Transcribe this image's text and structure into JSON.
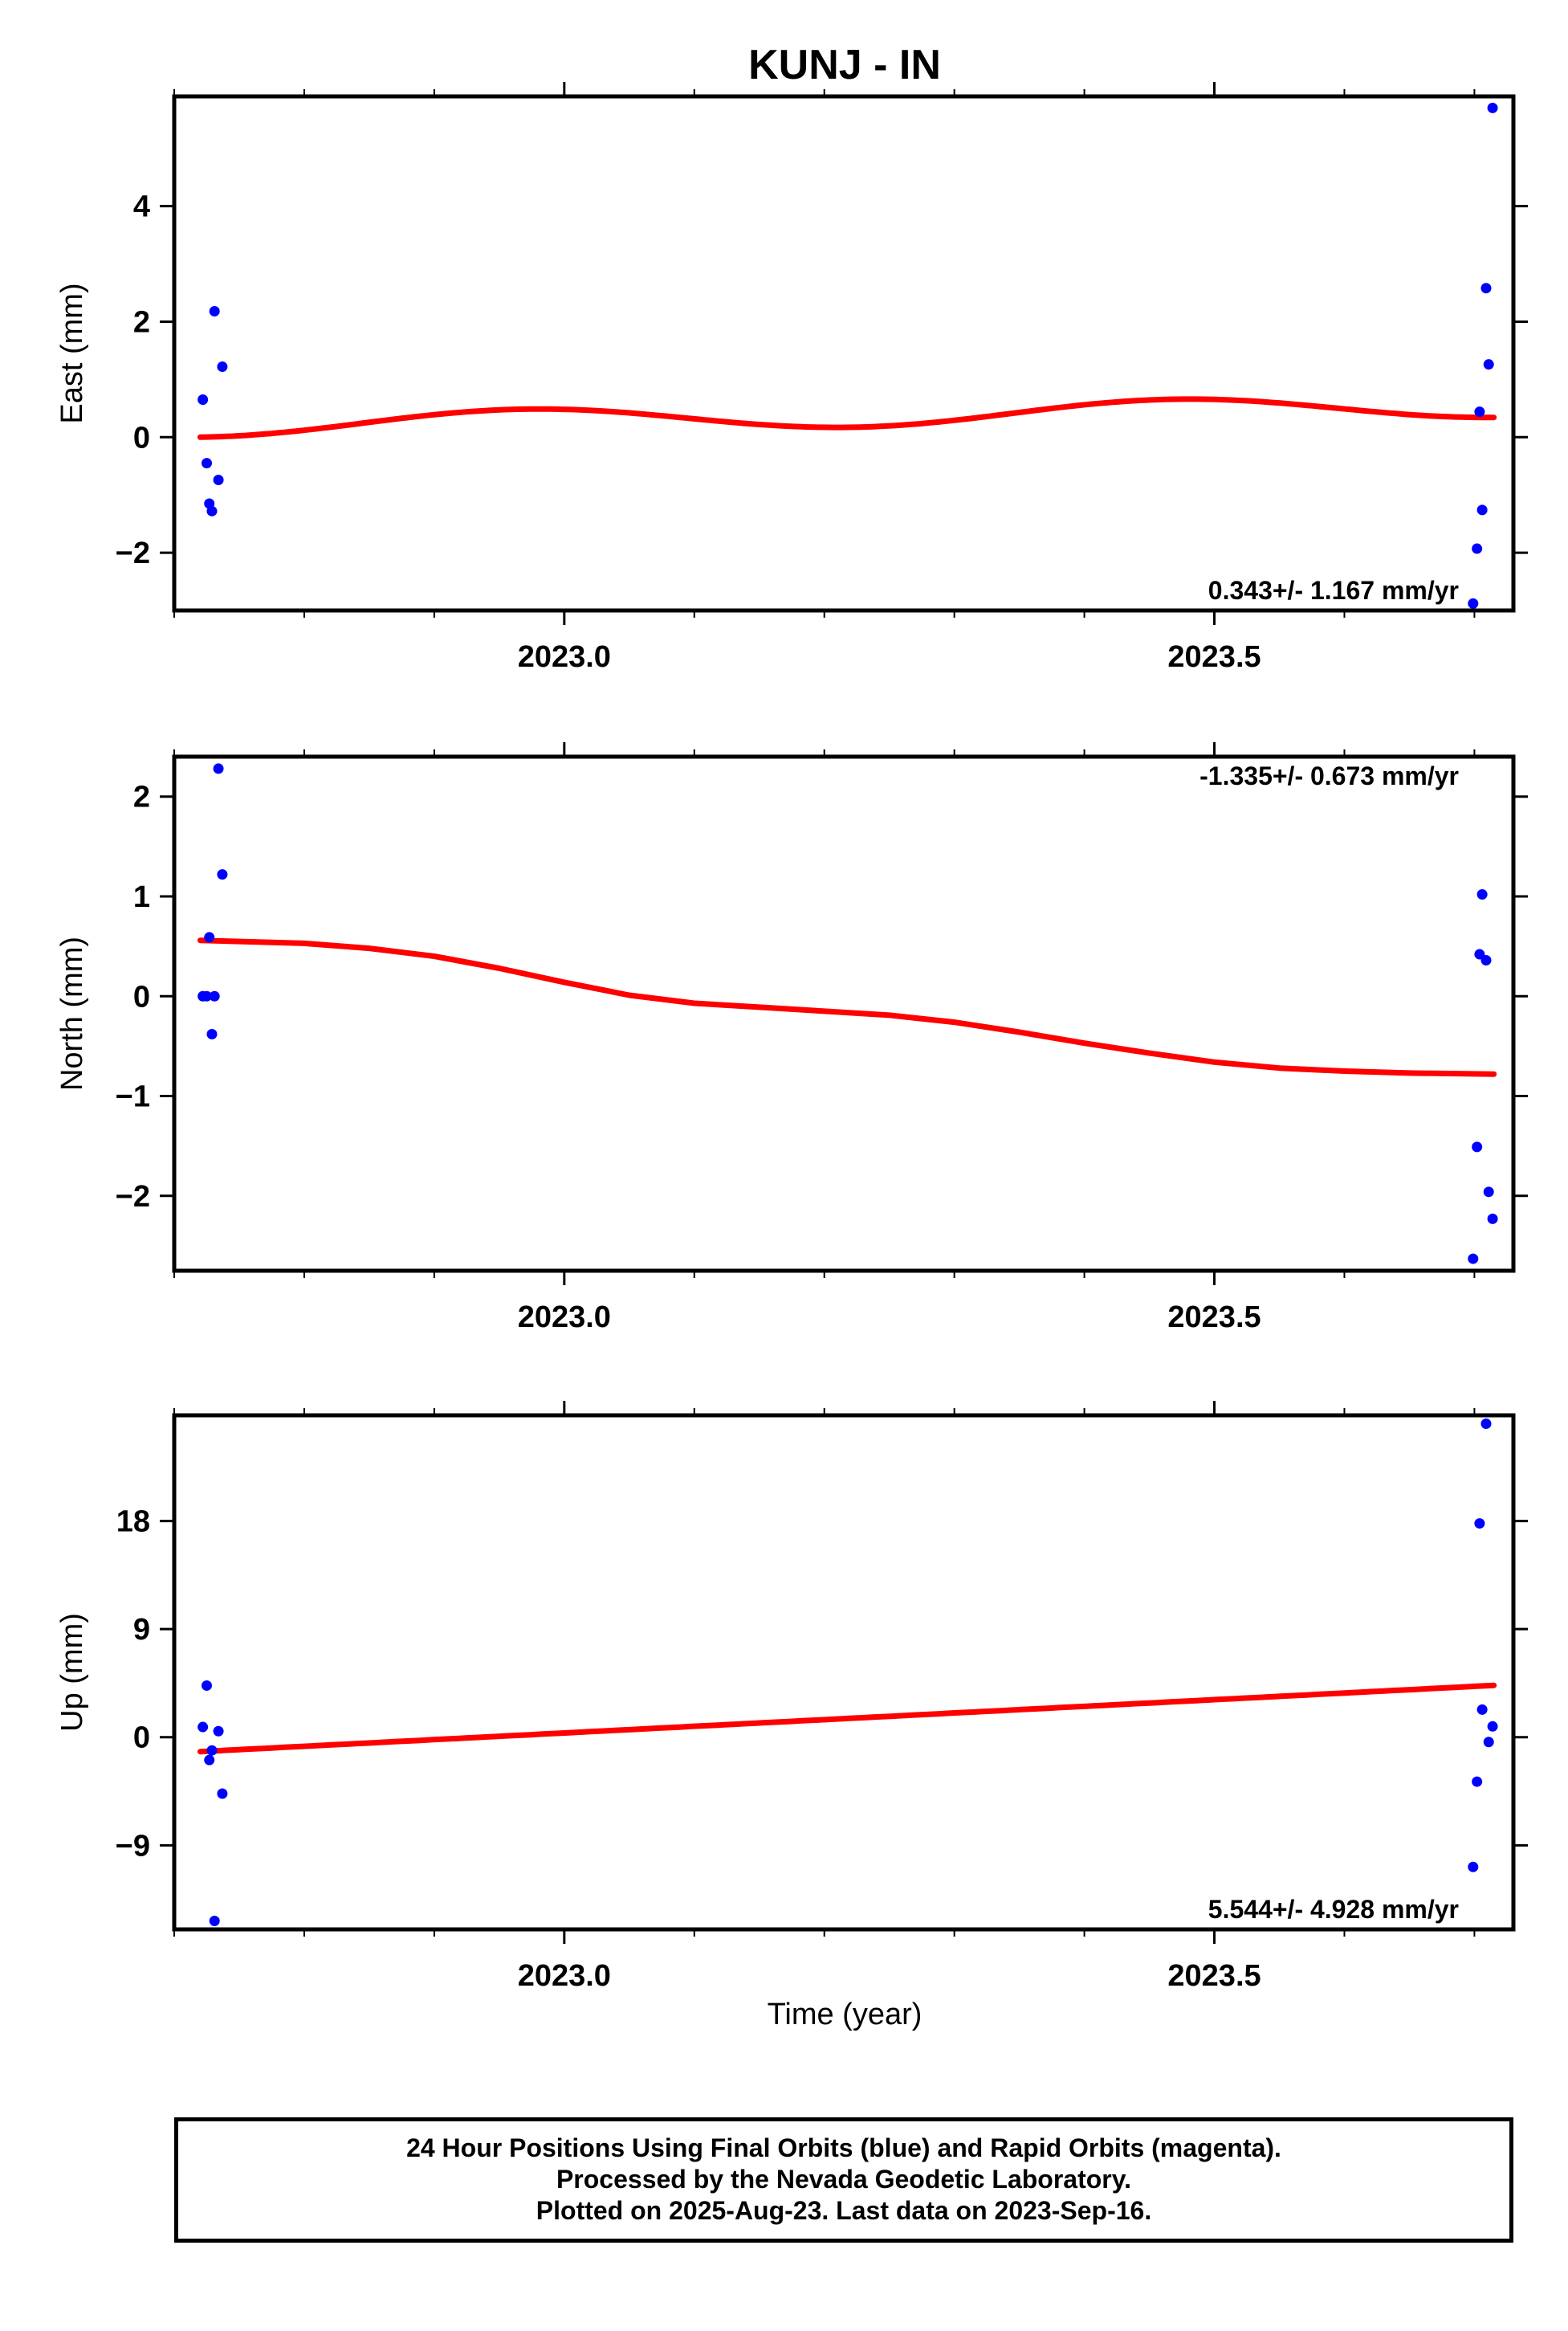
{
  "title": "KUNJ - IN",
  "xlabel": "Time (year)",
  "colors": {
    "data": "#0000ff",
    "fit": "#ff0000",
    "frame": "#000000"
  },
  "chart_data": [
    {
      "type": "scatter",
      "name": "east",
      "ylabel": "East (mm)",
      "xlim": [
        2022.7,
        2023.73
      ],
      "ylim": [
        -3.0,
        5.9
      ],
      "xticks": [
        2023.0,
        2023.5
      ],
      "xtick_labels": [
        "2023.0",
        "2023.5"
      ],
      "yticks": [
        -2,
        0,
        2,
        4
      ],
      "ytick_labels": [
        "−2",
        "0",
        "2",
        "4"
      ],
      "rate_label": "0.343+/- 1.167 mm/yr",
      "rate_position": "bottom-right",
      "points": [
        {
          "x": 2022.722,
          "y": 0.65
        },
        {
          "x": 2022.725,
          "y": -0.45
        },
        {
          "x": 2022.727,
          "y": -1.15
        },
        {
          "x": 2022.729,
          "y": -1.28
        },
        {
          "x": 2022.731,
          "y": 2.18
        },
        {
          "x": 2022.734,
          "y": -0.74
        },
        {
          "x": 2022.737,
          "y": 1.22
        },
        {
          "x": 2023.699,
          "y": -2.88
        },
        {
          "x": 2023.702,
          "y": -1.93
        },
        {
          "x": 2023.704,
          "y": 0.44
        },
        {
          "x": 2023.706,
          "y": -1.26
        },
        {
          "x": 2023.709,
          "y": 2.58
        },
        {
          "x": 2023.711,
          "y": 1.26
        },
        {
          "x": 2023.714,
          "y": 5.7
        }
      ],
      "fit": {
        "model": "linear+annual+semiannual",
        "x0": 2022.72,
        "x1": 2023.715,
        "offset": 0.0,
        "rate": 0.343,
        "terms": [
          {
            "amp": -0.2,
            "period": 0.5,
            "phase": 0.0,
            "shift": 0.2
          }
        ]
      }
    },
    {
      "type": "scatter",
      "name": "north",
      "ylabel": "North (mm)",
      "xlim": [
        2022.7,
        2023.73
      ],
      "ylim": [
        -2.75,
        2.4
      ],
      "xticks": [
        2023.0,
        2023.5
      ],
      "xtick_labels": [
        "2023.0",
        "2023.5"
      ],
      "yticks": [
        -2,
        -1,
        0,
        1,
        2
      ],
      "ytick_labels": [
        "−2",
        "−1",
        "0",
        "1",
        "2"
      ],
      "rate_label": "-1.335+/- 0.673 mm/yr",
      "rate_position": "top-right",
      "points": [
        {
          "x": 2022.722,
          "y": 0.0
        },
        {
          "x": 2022.725,
          "y": 0.0
        },
        {
          "x": 2022.727,
          "y": 0.59
        },
        {
          "x": 2022.729,
          "y": -0.38
        },
        {
          "x": 2022.731,
          "y": 0.0
        },
        {
          "x": 2022.734,
          "y": 2.28
        },
        {
          "x": 2022.737,
          "y": 1.22
        },
        {
          "x": 2023.699,
          "y": -2.63
        },
        {
          "x": 2023.702,
          "y": -1.51
        },
        {
          "x": 2023.704,
          "y": 0.42
        },
        {
          "x": 2023.706,
          "y": 1.02
        },
        {
          "x": 2023.709,
          "y": 0.36
        },
        {
          "x": 2023.711,
          "y": -1.96
        },
        {
          "x": 2023.714,
          "y": -2.23
        }
      ],
      "fit_curve": [
        [
          2022.72,
          0.56
        ],
        [
          2022.8,
          0.53
        ],
        [
          2022.85,
          0.48
        ],
        [
          2022.9,
          0.4
        ],
        [
          2022.95,
          0.28
        ],
        [
          2023.0,
          0.14
        ],
        [
          2023.05,
          0.01
        ],
        [
          2023.1,
          -0.07
        ],
        [
          2023.15,
          -0.11
        ],
        [
          2023.2,
          -0.15
        ],
        [
          2023.25,
          -0.19
        ],
        [
          2023.3,
          -0.26
        ],
        [
          2023.35,
          -0.36
        ],
        [
          2023.4,
          -0.47
        ],
        [
          2023.45,
          -0.57
        ],
        [
          2023.5,
          -0.66
        ],
        [
          2023.55,
          -0.72
        ],
        [
          2023.6,
          -0.75
        ],
        [
          2023.65,
          -0.77
        ],
        [
          2023.715,
          -0.78
        ]
      ]
    },
    {
      "type": "scatter",
      "name": "up",
      "ylabel": "Up (mm)",
      "xlim": [
        2022.7,
        2023.73
      ],
      "ylim": [
        -16.0,
        26.8
      ],
      "xticks": [
        2023.0,
        2023.5
      ],
      "xtick_labels": [
        "2023.0",
        "2023.5"
      ],
      "yticks": [
        -9,
        0,
        9,
        18
      ],
      "ytick_labels": [
        "−9",
        "0",
        "9",
        "18"
      ],
      "rate_label": "5.544+/- 4.928 mm/yr",
      "rate_position": "bottom-right",
      "points": [
        {
          "x": 2022.722,
          "y": 0.85
        },
        {
          "x": 2022.725,
          "y": 4.3
        },
        {
          "x": 2022.727,
          "y": -1.9
        },
        {
          "x": 2022.729,
          "y": -1.1
        },
        {
          "x": 2022.731,
          "y": -15.3
        },
        {
          "x": 2022.734,
          "y": 0.5
        },
        {
          "x": 2022.737,
          "y": -4.7
        },
        {
          "x": 2023.699,
          "y": -10.8
        },
        {
          "x": 2023.702,
          "y": -3.7
        },
        {
          "x": 2023.704,
          "y": 17.8
        },
        {
          "x": 2023.706,
          "y": 2.3
        },
        {
          "x": 2023.709,
          "y": 26.1
        },
        {
          "x": 2023.711,
          "y": -0.4
        },
        {
          "x": 2023.714,
          "y": 0.9
        }
      ],
      "fit": {
        "model": "linear",
        "x0": 2022.72,
        "x1": 2023.715,
        "offset": -1.2,
        "rate": 5.544,
        "terms": []
      }
    }
  ],
  "footer": {
    "line1": "24 Hour Positions Using Final Orbits (blue) and Rapid Orbits (magenta).",
    "line2": "Processed by the Nevada Geodetic Laboratory.",
    "line3": "Plotted on 2025-Aug-23. Last data on 2023-Sep-16."
  }
}
